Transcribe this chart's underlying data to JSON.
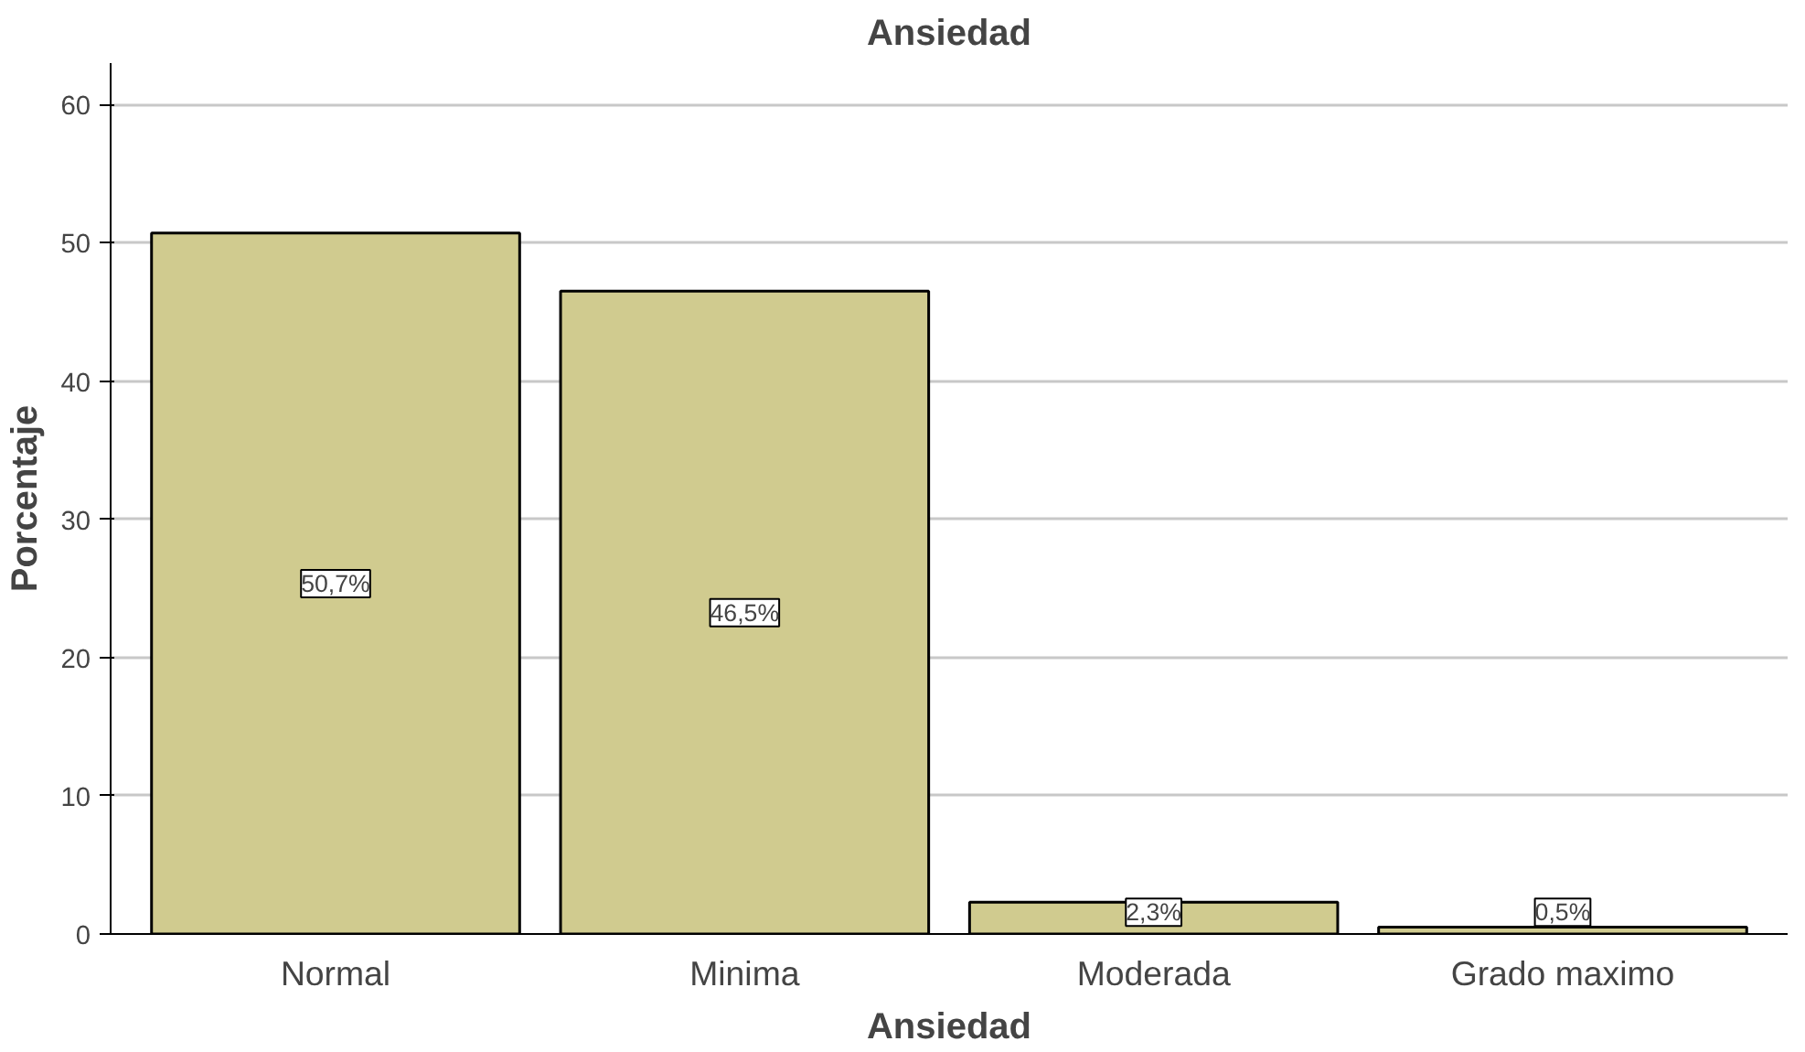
{
  "chart_data": {
    "type": "bar",
    "title": "Ansiedad",
    "xlabel": "Ansiedad",
    "ylabel": "Porcentaje",
    "categories": [
      "Normal",
      "Minima",
      "Moderada",
      "Grado maximo"
    ],
    "values": [
      50.7,
      46.5,
      2.3,
      0.5
    ],
    "value_labels": [
      "50,7%",
      "46,5%",
      "2,3%",
      "0,5%"
    ],
    "color": "#d0cb8f",
    "ylim": [
      0,
      63
    ],
    "yticks": [
      0,
      10,
      20,
      30,
      40,
      50,
      60
    ],
    "grid": "y"
  }
}
